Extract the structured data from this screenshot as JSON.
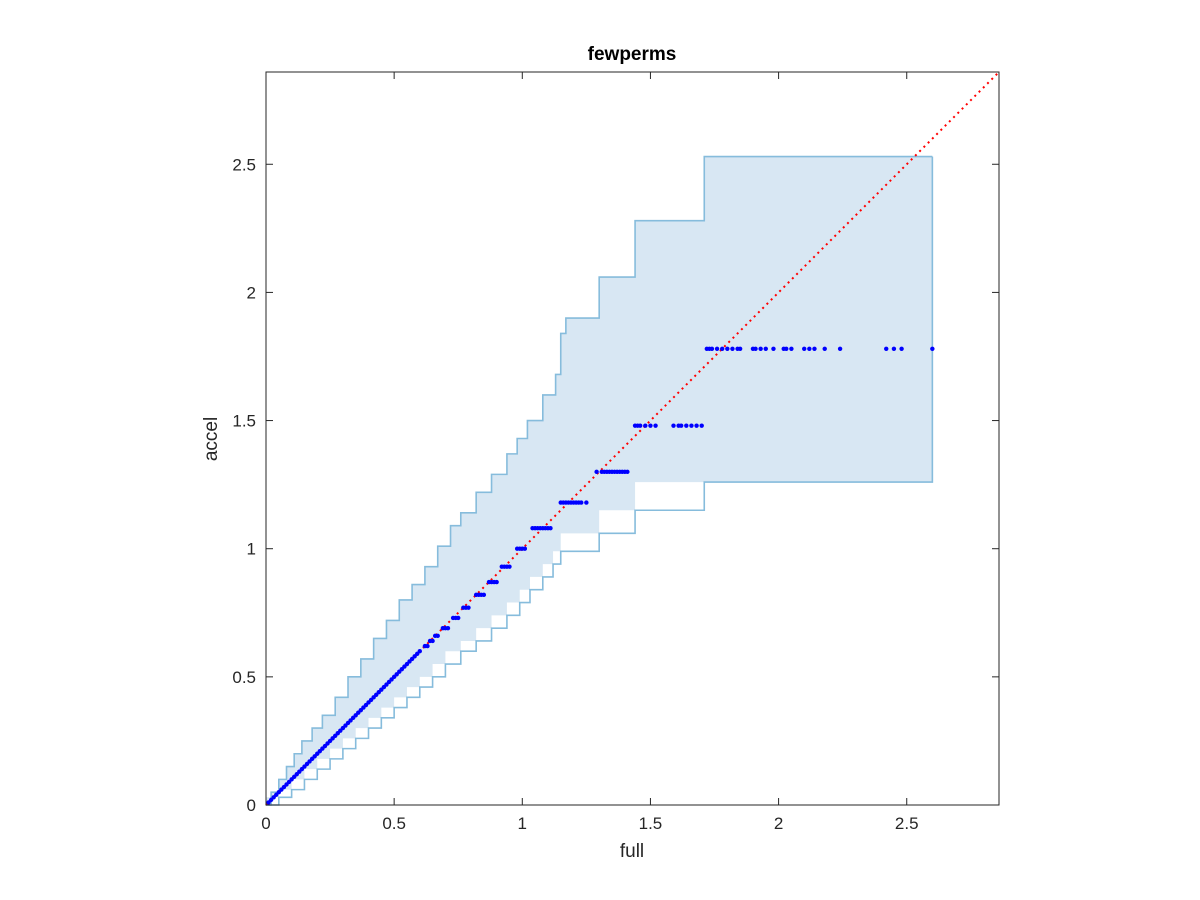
{
  "chart_data": {
    "type": "scatter",
    "title": "fewperms",
    "xlabel": "full",
    "ylabel": "accel",
    "xlim": [
      0,
      2.86
    ],
    "ylim": [
      0,
      2.86
    ],
    "box": true,
    "grid": false,
    "xticks": [
      0,
      0.5,
      1,
      1.5,
      2,
      2.5
    ],
    "xtick_labels": [
      "0",
      "0.5",
      "1",
      "1.5",
      "2",
      "2.5"
    ],
    "yticks": [
      0,
      0.5,
      1,
      1.5,
      2,
      2.5
    ],
    "ytick_labels": [
      "0",
      "0.5",
      "1",
      "1.5",
      "2",
      "2.5"
    ],
    "colors": {
      "band_fill": "#d8e7f3",
      "band_edge": "#86bcdc",
      "points": "#0000ff",
      "reference": "#ff0000"
    },
    "reference_line": {
      "style": "dotted",
      "x": [
        0,
        2.86
      ],
      "y": [
        0,
        2.86
      ]
    },
    "band": {
      "upper": [
        [
          0,
          0
        ],
        [
          0.02,
          0.05
        ],
        [
          0.05,
          0.1
        ],
        [
          0.08,
          0.15
        ],
        [
          0.11,
          0.2
        ],
        [
          0.14,
          0.25
        ],
        [
          0.18,
          0.3
        ],
        [
          0.22,
          0.35
        ],
        [
          0.27,
          0.42
        ],
        [
          0.32,
          0.5
        ],
        [
          0.37,
          0.57
        ],
        [
          0.42,
          0.65
        ],
        [
          0.47,
          0.72
        ],
        [
          0.52,
          0.8
        ],
        [
          0.57,
          0.86
        ],
        [
          0.62,
          0.93
        ],
        [
          0.67,
          1.01
        ],
        [
          0.72,
          1.09
        ],
        [
          0.76,
          1.14
        ],
        [
          0.82,
          1.22
        ],
        [
          0.88,
          1.29
        ],
        [
          0.94,
          1.37
        ],
        [
          0.98,
          1.43
        ],
        [
          1.02,
          1.5
        ],
        [
          1.08,
          1.6
        ],
        [
          1.13,
          1.68
        ],
        [
          1.15,
          1.84
        ],
        [
          1.17,
          1.9
        ],
        [
          1.3,
          2.06
        ],
        [
          1.44,
          2.28
        ],
        [
          1.71,
          2.53
        ],
        [
          2.6,
          2.53
        ]
      ],
      "lower": [
        [
          0,
          0
        ],
        [
          0.05,
          0.03
        ],
        [
          0.1,
          0.06
        ],
        [
          0.15,
          0.1
        ],
        [
          0.2,
          0.14
        ],
        [
          0.25,
          0.18
        ],
        [
          0.3,
          0.22
        ],
        [
          0.35,
          0.26
        ],
        [
          0.4,
          0.3
        ],
        [
          0.45,
          0.34
        ],
        [
          0.5,
          0.38
        ],
        [
          0.55,
          0.42
        ],
        [
          0.6,
          0.46
        ],
        [
          0.65,
          0.5
        ],
        [
          0.7,
          0.55
        ],
        [
          0.76,
          0.6
        ],
        [
          0.82,
          0.64
        ],
        [
          0.88,
          0.69
        ],
        [
          0.94,
          0.74
        ],
        [
          0.99,
          0.79
        ],
        [
          1.03,
          0.84
        ],
        [
          1.08,
          0.89
        ],
        [
          1.12,
          0.94
        ],
        [
          1.15,
          0.99
        ],
        [
          1.3,
          1.06
        ],
        [
          1.44,
          1.15
        ],
        [
          1.71,
          1.26
        ],
        [
          2.6,
          1.26
        ]
      ]
    },
    "points": [
      [
        0.01,
        0.01
      ],
      [
        0.02,
        0.02
      ],
      [
        0.03,
        0.03
      ],
      [
        0.04,
        0.04
      ],
      [
        0.05,
        0.05
      ],
      [
        0.06,
        0.06
      ],
      [
        0.07,
        0.07
      ],
      [
        0.08,
        0.08
      ],
      [
        0.09,
        0.09
      ],
      [
        0.1,
        0.1
      ],
      [
        0.11,
        0.11
      ],
      [
        0.12,
        0.12
      ],
      [
        0.13,
        0.13
      ],
      [
        0.14,
        0.14
      ],
      [
        0.15,
        0.15
      ],
      [
        0.16,
        0.16
      ],
      [
        0.17,
        0.17
      ],
      [
        0.18,
        0.18
      ],
      [
        0.19,
        0.19
      ],
      [
        0.2,
        0.2
      ],
      [
        0.21,
        0.21
      ],
      [
        0.22,
        0.22
      ],
      [
        0.23,
        0.23
      ],
      [
        0.24,
        0.24
      ],
      [
        0.25,
        0.25
      ],
      [
        0.26,
        0.26
      ],
      [
        0.27,
        0.27
      ],
      [
        0.28,
        0.28
      ],
      [
        0.29,
        0.29
      ],
      [
        0.3,
        0.3
      ],
      [
        0.31,
        0.31
      ],
      [
        0.32,
        0.32
      ],
      [
        0.33,
        0.33
      ],
      [
        0.34,
        0.34
      ],
      [
        0.35,
        0.35
      ],
      [
        0.36,
        0.36
      ],
      [
        0.37,
        0.37
      ],
      [
        0.38,
        0.38
      ],
      [
        0.39,
        0.39
      ],
      [
        0.4,
        0.4
      ],
      [
        0.41,
        0.41
      ],
      [
        0.42,
        0.42
      ],
      [
        0.43,
        0.43
      ],
      [
        0.44,
        0.44
      ],
      [
        0.45,
        0.45
      ],
      [
        0.46,
        0.46
      ],
      [
        0.47,
        0.47
      ],
      [
        0.48,
        0.48
      ],
      [
        0.49,
        0.49
      ],
      [
        0.5,
        0.5
      ],
      [
        0.51,
        0.51
      ],
      [
        0.52,
        0.52
      ],
      [
        0.53,
        0.53
      ],
      [
        0.54,
        0.54
      ],
      [
        0.55,
        0.55
      ],
      [
        0.56,
        0.56
      ],
      [
        0.57,
        0.57
      ],
      [
        0.58,
        0.58
      ],
      [
        0.59,
        0.59
      ],
      [
        0.6,
        0.6
      ],
      [
        0.62,
        0.62
      ],
      [
        0.63,
        0.62
      ],
      [
        0.64,
        0.64
      ],
      [
        0.65,
        0.64
      ],
      [
        0.66,
        0.66
      ],
      [
        0.67,
        0.66
      ],
      [
        0.69,
        0.69
      ],
      [
        0.7,
        0.69
      ],
      [
        0.71,
        0.69
      ],
      [
        0.73,
        0.73
      ],
      [
        0.74,
        0.73
      ],
      [
        0.75,
        0.73
      ],
      [
        0.77,
        0.77
      ],
      [
        0.78,
        0.77
      ],
      [
        0.79,
        0.77
      ],
      [
        0.82,
        0.82
      ],
      [
        0.83,
        0.82
      ],
      [
        0.84,
        0.82
      ],
      [
        0.85,
        0.82
      ],
      [
        0.87,
        0.87
      ],
      [
        0.88,
        0.87
      ],
      [
        0.89,
        0.87
      ],
      [
        0.9,
        0.87
      ],
      [
        0.92,
        0.93
      ],
      [
        0.93,
        0.93
      ],
      [
        0.94,
        0.93
      ],
      [
        0.95,
        0.93
      ],
      [
        0.98,
        1.0
      ],
      [
        0.99,
        1.0
      ],
      [
        1.0,
        1.0
      ],
      [
        1.01,
        1.0
      ],
      [
        1.04,
        1.08
      ],
      [
        1.05,
        1.08
      ],
      [
        1.06,
        1.08
      ],
      [
        1.07,
        1.08
      ],
      [
        1.08,
        1.08
      ],
      [
        1.09,
        1.08
      ],
      [
        1.1,
        1.08
      ],
      [
        1.11,
        1.08
      ],
      [
        1.15,
        1.18
      ],
      [
        1.16,
        1.18
      ],
      [
        1.17,
        1.18
      ],
      [
        1.18,
        1.18
      ],
      [
        1.19,
        1.18
      ],
      [
        1.2,
        1.18
      ],
      [
        1.21,
        1.18
      ],
      [
        1.22,
        1.18
      ],
      [
        1.23,
        1.18
      ],
      [
        1.25,
        1.18
      ],
      [
        1.29,
        1.3
      ],
      [
        1.31,
        1.3
      ],
      [
        1.32,
        1.3
      ],
      [
        1.33,
        1.3
      ],
      [
        1.34,
        1.3
      ],
      [
        1.35,
        1.3
      ],
      [
        1.36,
        1.3
      ],
      [
        1.37,
        1.3
      ],
      [
        1.38,
        1.3
      ],
      [
        1.39,
        1.3
      ],
      [
        1.4,
        1.3
      ],
      [
        1.41,
        1.3
      ],
      [
        1.44,
        1.48
      ],
      [
        1.45,
        1.48
      ],
      [
        1.46,
        1.48
      ],
      [
        1.48,
        1.48
      ],
      [
        1.5,
        1.48
      ],
      [
        1.52,
        1.48
      ],
      [
        1.59,
        1.48
      ],
      [
        1.61,
        1.48
      ],
      [
        1.62,
        1.48
      ],
      [
        1.64,
        1.48
      ],
      [
        1.66,
        1.48
      ],
      [
        1.68,
        1.48
      ],
      [
        1.7,
        1.48
      ],
      [
        1.72,
        1.78
      ],
      [
        1.73,
        1.78
      ],
      [
        1.74,
        1.78
      ],
      [
        1.76,
        1.78
      ],
      [
        1.78,
        1.78
      ],
      [
        1.8,
        1.78
      ],
      [
        1.82,
        1.78
      ],
      [
        1.84,
        1.78
      ],
      [
        1.85,
        1.78
      ],
      [
        1.9,
        1.78
      ],
      [
        1.91,
        1.78
      ],
      [
        1.93,
        1.78
      ],
      [
        1.95,
        1.78
      ],
      [
        1.98,
        1.78
      ],
      [
        2.02,
        1.78
      ],
      [
        2.03,
        1.78
      ],
      [
        2.05,
        1.78
      ],
      [
        2.1,
        1.78
      ],
      [
        2.12,
        1.78
      ],
      [
        2.14,
        1.78
      ],
      [
        2.18,
        1.78
      ],
      [
        2.24,
        1.78
      ],
      [
        2.42,
        1.78
      ],
      [
        2.45,
        1.78
      ],
      [
        2.48,
        1.78
      ],
      [
        2.6,
        1.78
      ]
    ]
  }
}
